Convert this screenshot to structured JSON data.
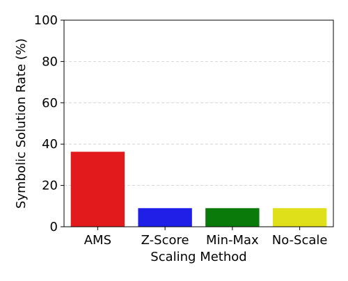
{
  "chart_data": {
    "type": "bar",
    "title": "",
    "xlabel": "Scaling Method",
    "ylabel": "Symbolic Solution Rate (%)",
    "categories": [
      "AMS",
      "Z-Score",
      "Min-Max",
      "No-Scale"
    ],
    "values": [
      36.3,
      9.0,
      9.0,
      9.0
    ],
    "colors": [
      "#e31a1c",
      "#1f1fe8",
      "#0a7a0a",
      "#e0e01a"
    ],
    "ylim": [
      0,
      100
    ],
    "yticks": [
      0,
      20,
      40,
      60,
      80,
      100
    ],
    "ytick_labels": [
      "0",
      "20",
      "40",
      "60",
      "80",
      "100"
    ],
    "grid": "horizontal dashed",
    "legend": "none"
  }
}
